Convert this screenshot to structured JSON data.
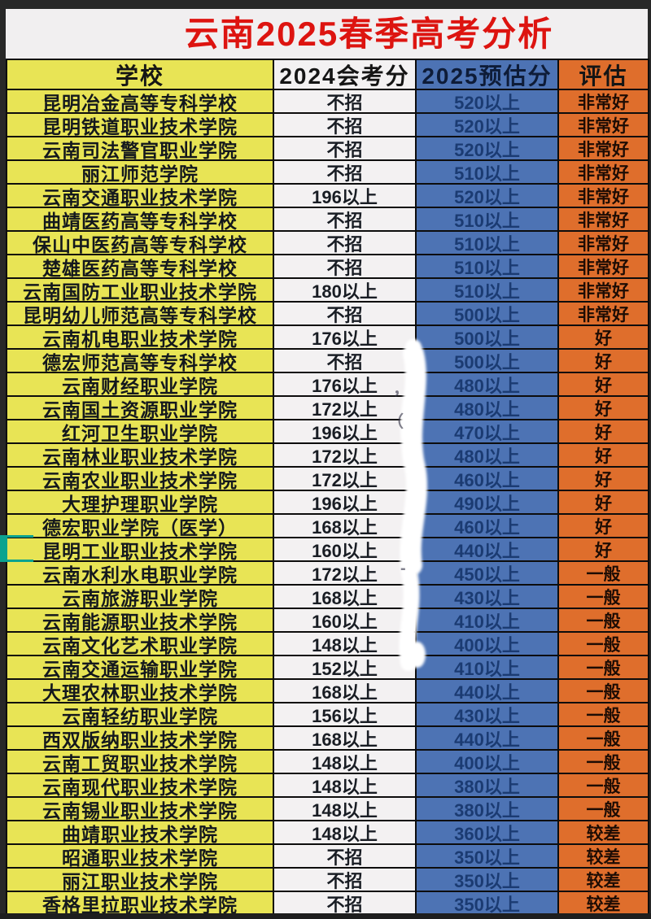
{
  "title": "云南2025春季高考分析",
  "colors": {
    "school_col_yellow": "#e8e455",
    "score2024_col_white": "#f3f1f2",
    "score2025_col_blue": "#4d73b4",
    "eval_col_orange": "#df6e2c",
    "title_red": "#dd1410",
    "frame_dark": "#282828",
    "score2025_text_navy": "#1b3b72",
    "selection_teal": "#0ba38f"
  },
  "selection": {
    "row_index": 19
  },
  "table": {
    "headers": [
      "学校",
      "2024会考分",
      "2025预估分",
      "评估"
    ],
    "rows": [
      [
        "昆明冶金高等专科学校",
        "不招",
        "520以上",
        "非常好"
      ],
      [
        "昆明铁道职业技术学院",
        "不招",
        "520以上",
        "非常好"
      ],
      [
        "云南司法警官职业学院",
        "不招",
        "520以上",
        "非常好"
      ],
      [
        "丽江师范学院",
        "不招",
        "510以上",
        "非常好"
      ],
      [
        "云南交通职业技术学院",
        "196以上",
        "520以上",
        "非常好"
      ],
      [
        "曲靖医药高等专科学校",
        "不招",
        "510以上",
        "非常好"
      ],
      [
        "保山中医药高等专科学校",
        "不招",
        "510以上",
        "非常好"
      ],
      [
        "楚雄医药高等专科学校",
        "不招",
        "510以上",
        "非常好"
      ],
      [
        "云南国防工业职业技术学院",
        "180以上",
        "510以上",
        "非常好"
      ],
      [
        "昆明幼儿师范高等专科学校",
        "不招",
        "500以上",
        "非常好"
      ],
      [
        "云南机电职业技术学院",
        "176以上",
        "500以上",
        "好"
      ],
      [
        "德宏师范高等专科学校",
        "不招",
        "500以上",
        "好"
      ],
      [
        "云南财经职业学院",
        "176以上",
        "480以上",
        "好"
      ],
      [
        "云南国土资源职业学院",
        "172以上",
        "480以上",
        "好"
      ],
      [
        "红河卫生职业学院",
        "196以上",
        "470以上",
        "好"
      ],
      [
        "云南林业职业技术学院",
        "172以上",
        "480以上",
        "好"
      ],
      [
        "云南农业职业技术学院",
        "172以上",
        "460以上",
        "好"
      ],
      [
        "大理护理职业学院",
        "196以上",
        "490以上",
        "好"
      ],
      [
        "德宏职业学院（医学）",
        "168以上",
        "460以上",
        "好"
      ],
      [
        "昆明工业职业技术学院",
        "160以上",
        "440以上",
        "好"
      ],
      [
        "云南水利水电职业学院",
        "172以上",
        "450以上",
        "一般"
      ],
      [
        "云南旅游职业学院",
        "168以上",
        "430以上",
        "一般"
      ],
      [
        "云南能源职业技术学院",
        "160以上",
        "410以上",
        "一般"
      ],
      [
        "云南文化艺术职业学院",
        "148以上",
        "400以上",
        "一般"
      ],
      [
        "云南交通运输职业学院",
        "152以上",
        "410以上",
        "一般"
      ],
      [
        "大理农林职业技术学院",
        "168以上",
        "440以上",
        "一般"
      ],
      [
        "云南轻纺职业学院",
        "156以上",
        "430以上",
        "一般"
      ],
      [
        "西双版纳职业技术学院",
        "168以上",
        "440以上",
        "一般"
      ],
      [
        "云南工贸职业技术学院",
        "148以上",
        "400以上",
        "一般"
      ],
      [
        "云南现代职业技术学院",
        "148以上",
        "380以上",
        "一般"
      ],
      [
        "云南锡业职业技术学院",
        "148以上",
        "380以上",
        "一般"
      ],
      [
        "曲靖职业技术学院",
        "148以上",
        "360以上",
        "较差"
      ],
      [
        "昭通职业技术学院",
        "不招",
        "350以上",
        "较差"
      ],
      [
        "丽江职业技术学院",
        "不招",
        "350以上",
        "较差"
      ],
      [
        "香格里拉职业技术学院",
        "不招",
        "350以上",
        "较差"
      ]
    ]
  },
  "artifacts": {
    "pen_marks": [
      "，",
      "（",
      "-"
    ]
  }
}
